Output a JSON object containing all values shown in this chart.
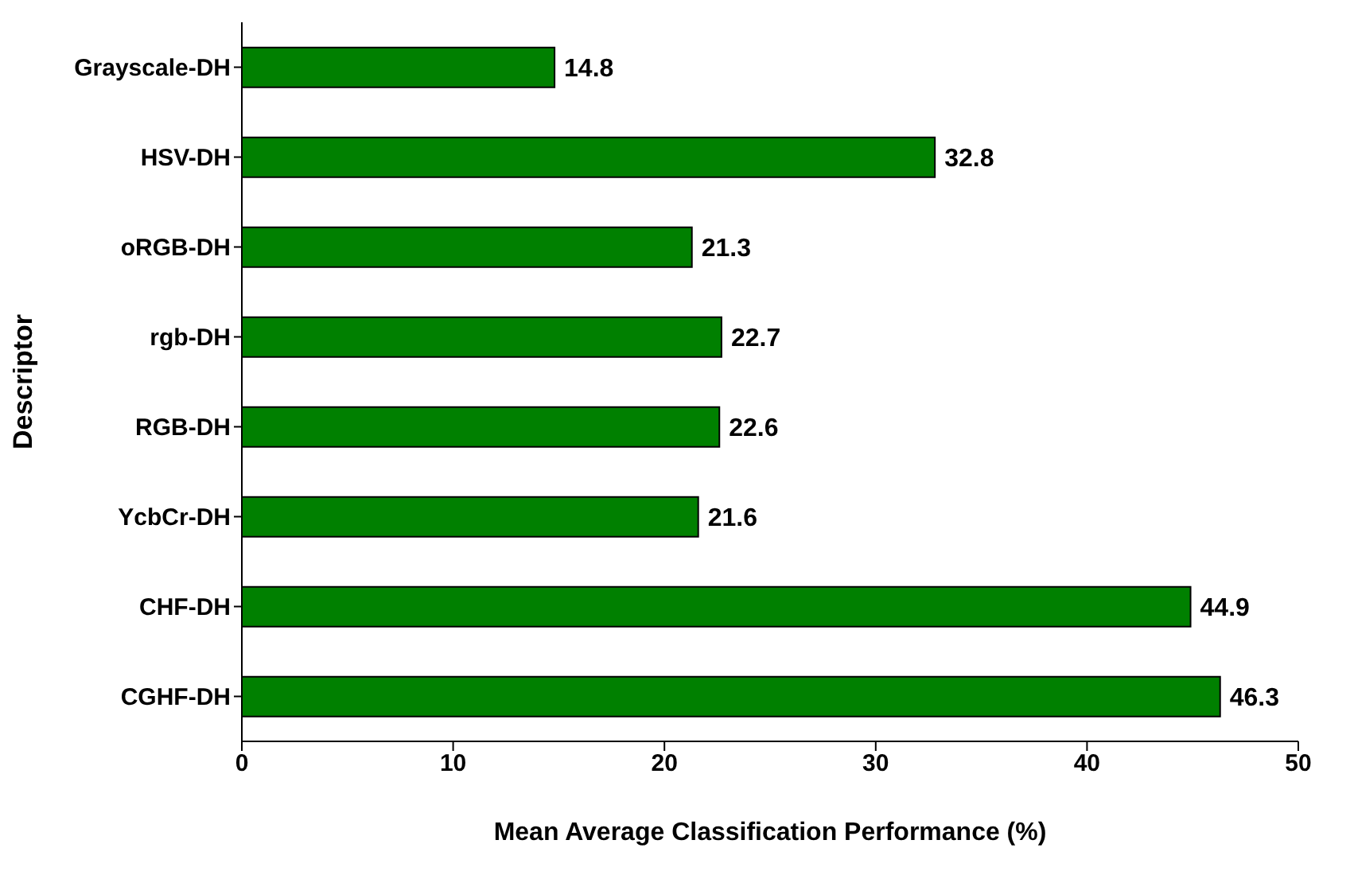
{
  "chart_data": {
    "type": "bar",
    "orientation": "horizontal",
    "xlabel": "Mean Average Classification Performance (%)",
    "ylabel": "Descriptor",
    "categories": [
      "Grayscale-DH",
      "HSV-DH",
      "oRGB-DH",
      "rgb-DH",
      "RGB-DH",
      "YcbCr-DH",
      "CHF-DH",
      "CGHF-DH"
    ],
    "values": [
      14.8,
      32.8,
      21.3,
      22.7,
      22.6,
      21.6,
      44.9,
      46.3
    ],
    "color": "#008000",
    "xlim": [
      0,
      50
    ],
    "xticks": [
      0,
      10,
      20,
      30,
      40,
      50
    ],
    "data_labels": true,
    "grid": false,
    "legend": false
  }
}
